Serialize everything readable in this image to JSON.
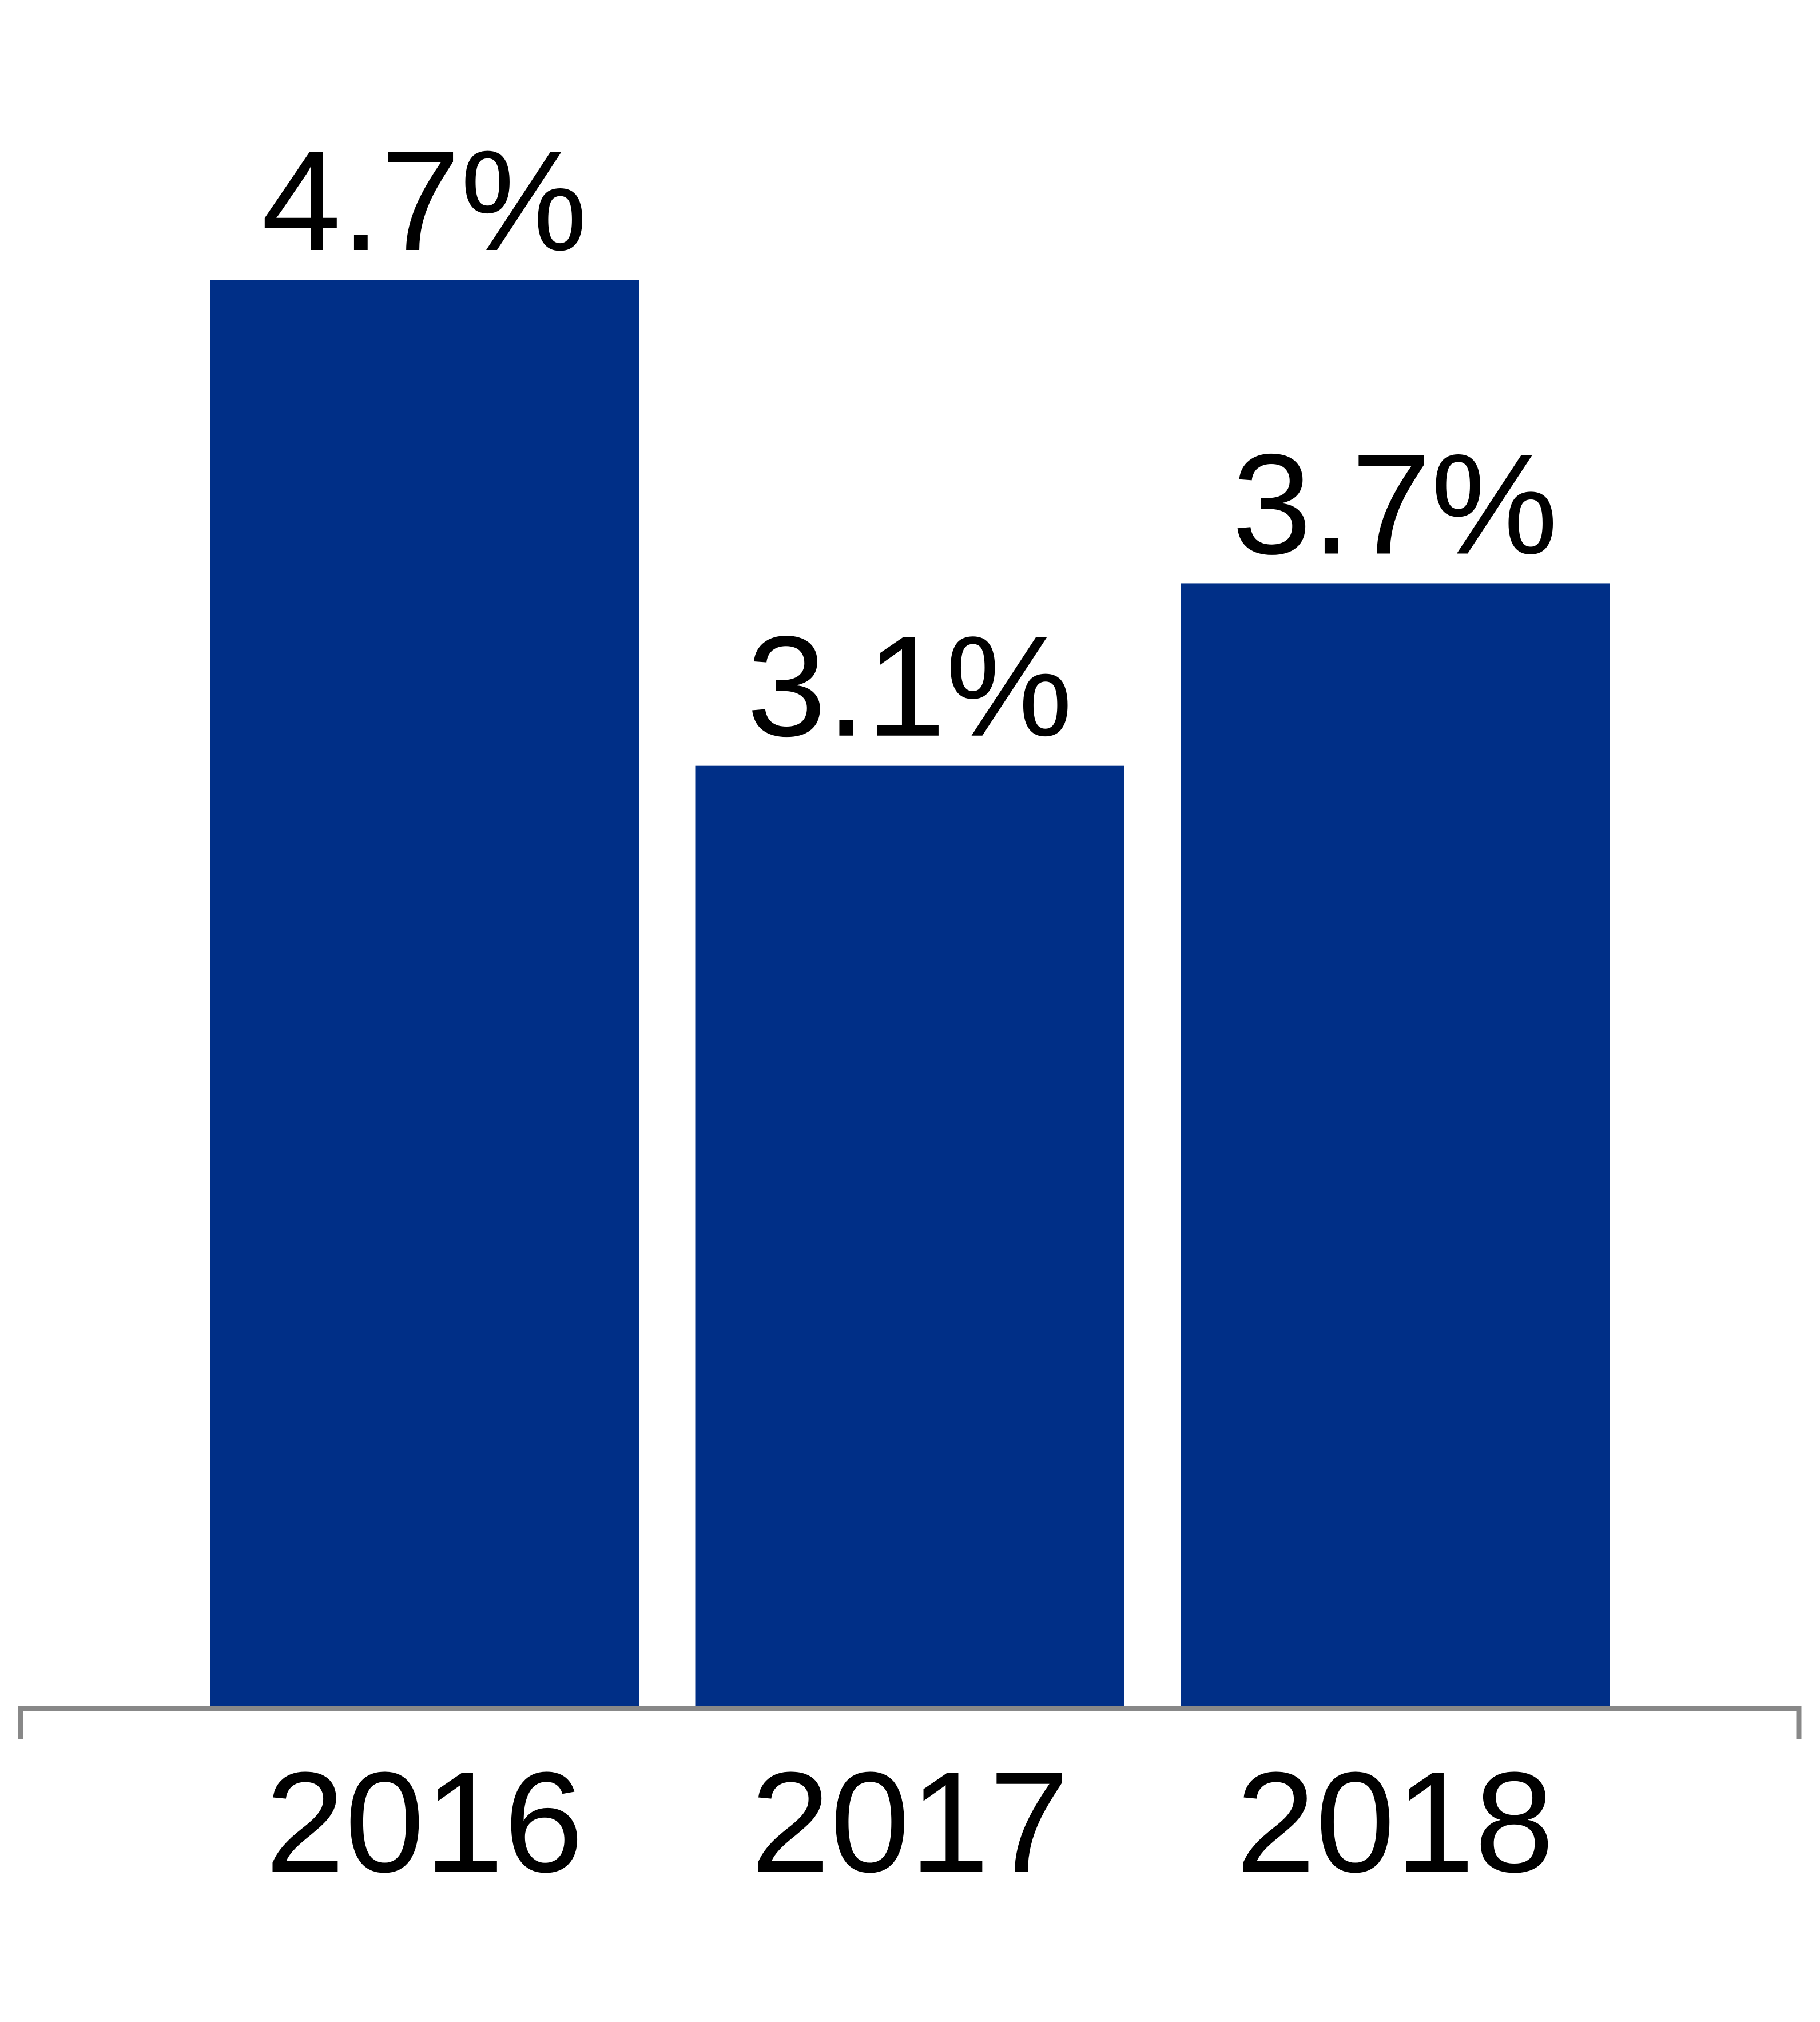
{
  "chart_data": {
    "type": "bar",
    "categories": [
      "2016",
      "2017",
      "2018"
    ],
    "values": [
      4.7,
      3.1,
      3.7
    ],
    "value_labels": [
      "4.7%",
      "3.1%",
      "3.7%"
    ],
    "color": "#002f87"
  }
}
